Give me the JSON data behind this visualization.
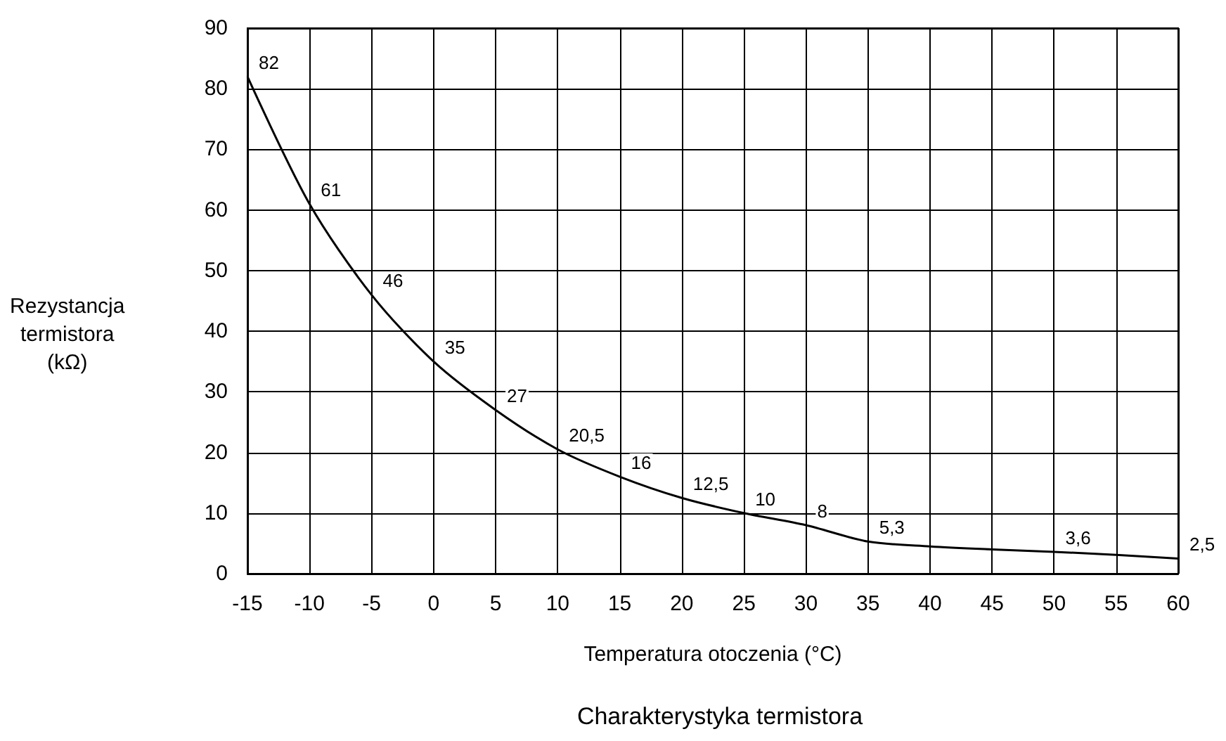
{
  "chart_data": {
    "type": "line",
    "title": "Charakterystyka termistora",
    "xlabel": "Temperatura otoczenia (°C)",
    "ylabel": "Rezystancja\ntermistora\n(kΩ)",
    "x": [
      -15,
      -10,
      -5,
      0,
      5,
      10,
      15,
      20,
      25,
      30,
      35,
      40,
      45,
      50,
      55,
      60
    ],
    "series": [
      {
        "color": "#000000",
        "values": [
          82,
          61,
          46,
          35,
          27,
          20.5,
          16,
          12.5,
          10,
          8,
          5.3,
          4.5,
          4,
          3.6,
          3.1,
          2.5
        ],
        "value_labels": [
          "82",
          "61",
          "46",
          "35",
          "27",
          "20,5",
          "16",
          "12,5",
          "10",
          "8",
          "5,3",
          null,
          null,
          "3,6",
          null,
          "2,5"
        ]
      }
    ],
    "xlim": [
      -15,
      60
    ],
    "xticks": [
      -15,
      -10,
      -5,
      0,
      5,
      10,
      15,
      20,
      25,
      30,
      35,
      40,
      45,
      50,
      55,
      60
    ],
    "ylim": [
      0,
      90
    ],
    "yticks": [
      0,
      10,
      20,
      30,
      40,
      50,
      60,
      70,
      80,
      90
    ],
    "grid": true,
    "marker": "none",
    "line_style": "solid"
  }
}
